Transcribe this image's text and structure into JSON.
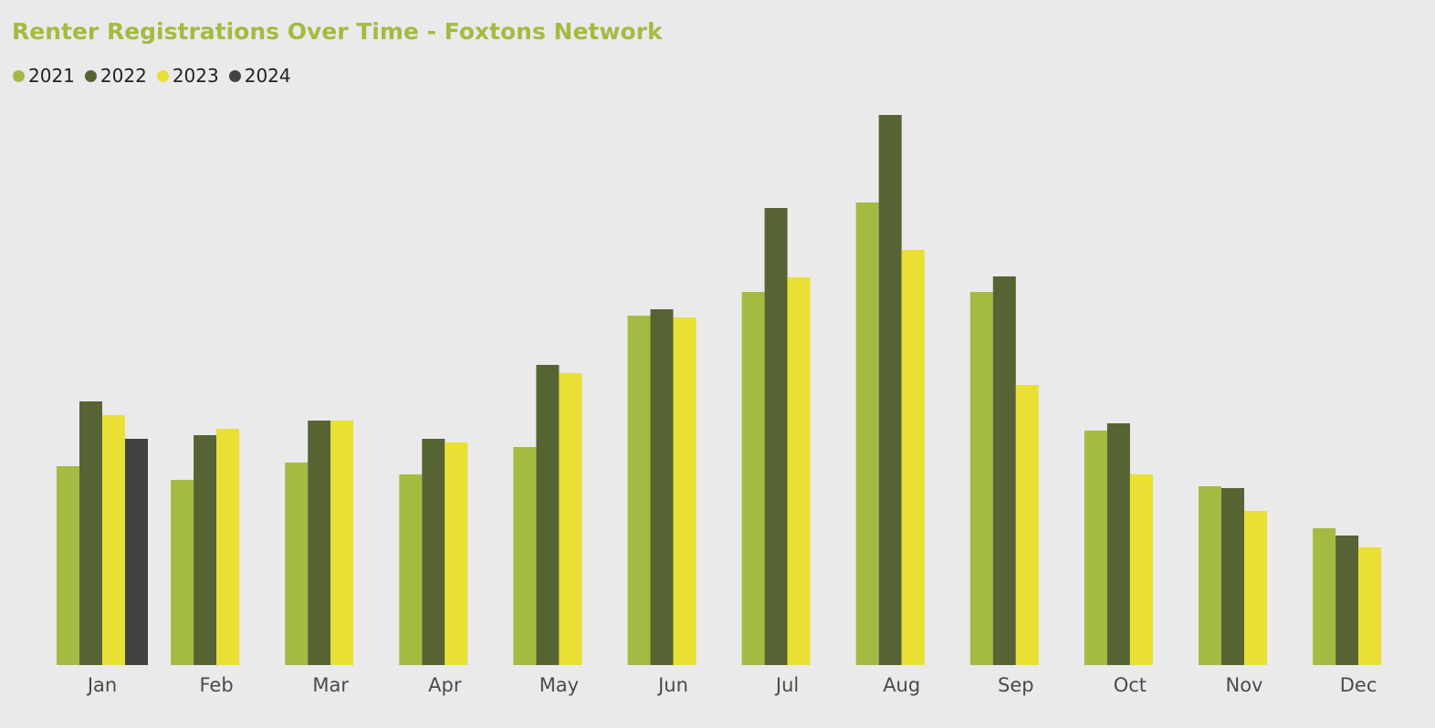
{
  "chart_data": {
    "type": "bar",
    "title": "Renter Registrations Over Time - Foxtons Network",
    "categories": [
      "Jan",
      "Feb",
      "Mar",
      "Apr",
      "May",
      "Jun",
      "Jul",
      "Aug",
      "Sep",
      "Oct",
      "Nov",
      "Dec"
    ],
    "series": [
      {
        "name": "2021",
        "color": "#A3BB42",
        "values": [
          218,
          203,
          222,
          209,
          239,
          383,
          409,
          507,
          409,
          257,
          196,
          150
        ]
      },
      {
        "name": "2022",
        "color": "#566433",
        "values": [
          289,
          252,
          268,
          248,
          329,
          390,
          501,
          603,
          426,
          265,
          194,
          142
        ]
      },
      {
        "name": "2023",
        "color": "#EADF33",
        "values": [
          274,
          259,
          268,
          244,
          320,
          381,
          425,
          455,
          307,
          209,
          169,
          129
        ]
      },
      {
        "name": "2024",
        "color": "#414244",
        "values": [
          248,
          null,
          null,
          null,
          null,
          null,
          null,
          null,
          null,
          null,
          null,
          null
        ]
      }
    ],
    "ylim": [
      0,
      603
    ],
    "xlabel": "",
    "ylabel": "",
    "grid": false,
    "legend_position": "top-left"
  }
}
